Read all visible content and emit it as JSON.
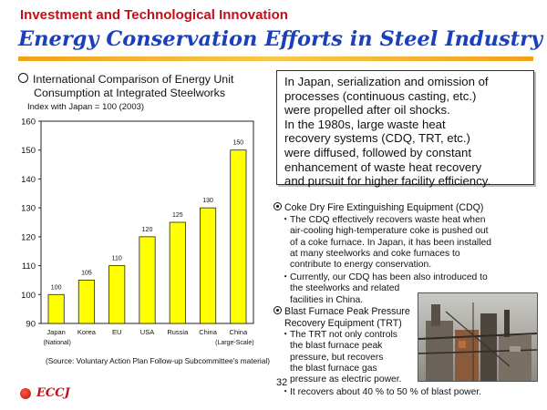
{
  "header": {
    "kicker": "Investment and Technological Innovation",
    "title": "Energy Conservation Efforts in Steel Industry"
  },
  "chart_section": {
    "heading_line1": "International Comparison of Energy Unit",
    "heading_line2": "Consumption at Integrated Steelworks",
    "index_note": "Index with Japan = 100 (2003)",
    "source": "(Source: Voluntary Action Plan Follow-up Subcommittee's material)"
  },
  "chart_data": {
    "type": "bar",
    "categories": [
      "Japan",
      "Korea",
      "EU",
      "USA",
      "Russia",
      "China",
      "China"
    ],
    "category_sublabels": [
      "(National)",
      "",
      "",
      "",
      "",
      "",
      "(Large-Scale)"
    ],
    "values": [
      100,
      105,
      110,
      120,
      125,
      130,
      150
    ],
    "data_labels": [
      "100",
      "105",
      "110",
      "120",
      "125",
      "130",
      "150"
    ],
    "yticks": [
      90,
      100,
      110,
      120,
      130,
      140,
      150,
      160
    ],
    "ylim": [
      90,
      160
    ],
    "bar_color": "#ffff00",
    "grid": false
  },
  "summary": {
    "lines": [
      "In Japan, serialization and omission of",
      "processes (continuous casting, etc.)",
      "were propelled after oil shocks.",
      "In the 1980s, large waste heat",
      "recovery systems (CDQ, TRT, etc.)",
      "were diffused, followed by constant",
      "enhancement of waste heat recovery",
      "and pursuit for higher facility efficiency."
    ]
  },
  "cdq": {
    "heading": "Coke Dry Fire Extinguishing Equipment (CDQ)",
    "bullet_char": "・",
    "item1": [
      "The CDQ effectively recovers waste heat when",
      "air-cooling high-temperature coke is pushed out",
      "of a coke furnace. In Japan, it has been installed",
      "at many steelworks and coke furnaces to",
      "contribute to energy conservation."
    ],
    "item2": [
      "Currently, our CDQ has been also introduced to",
      "the steelworks and related",
      "facilities in China."
    ]
  },
  "trt": {
    "heading_line1": "Blast Furnace Peak Pressure",
    "heading_line2": "Recovery Equipment (TRT)",
    "item1": [
      "The TRT not only controls",
      "the blast furnace peak",
      "pressure, but recovers",
      "the blast furnace gas",
      "pressure as electric power."
    ],
    "item2": [
      "It recovers about 40 % to 50 % of blast power."
    ]
  },
  "footer": {
    "page_number": "32",
    "logo": "ECCJ"
  },
  "colors": {
    "kicker": "#c0101a",
    "title": "#1a3fbf",
    "rule": "#f1a11a",
    "bar": "#ffff00"
  }
}
